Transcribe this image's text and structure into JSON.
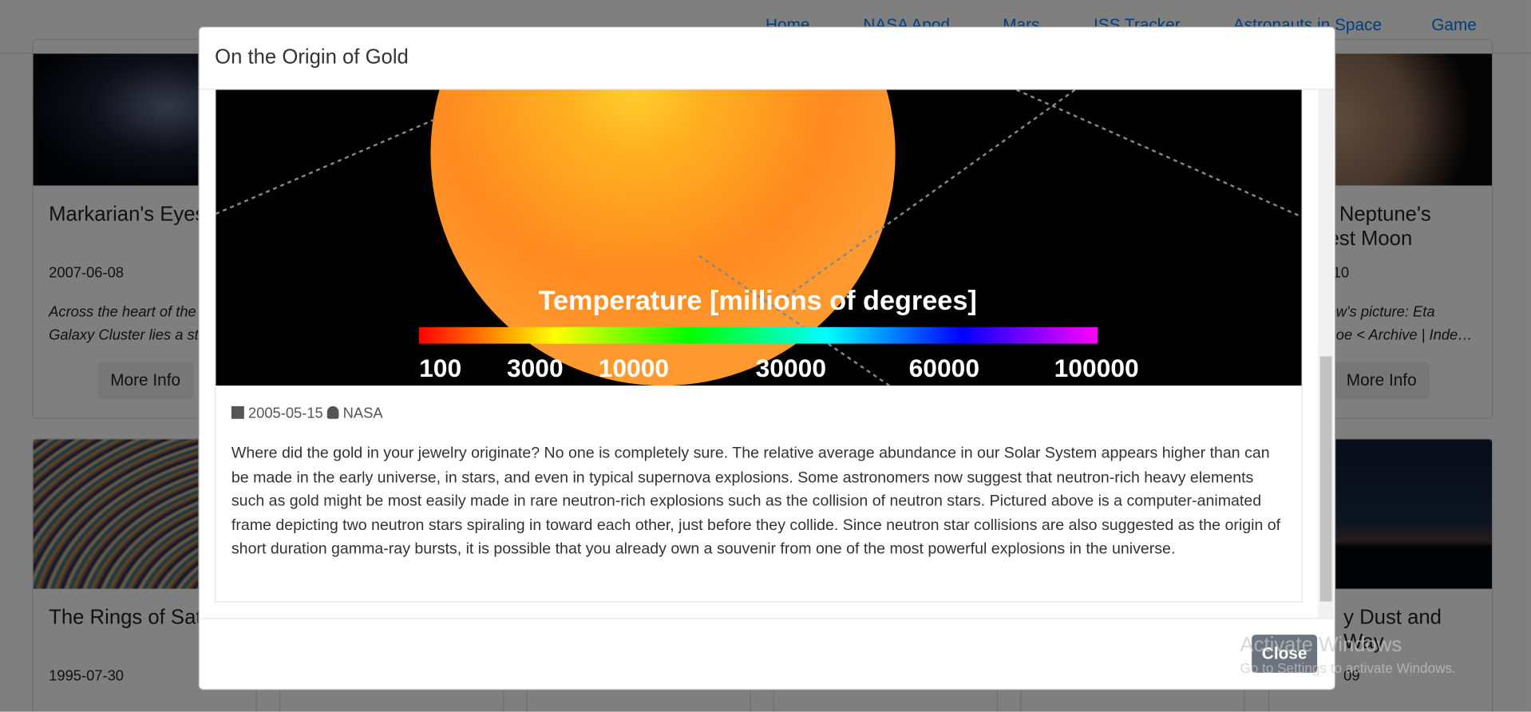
{
  "nav": {
    "links": [
      "Home",
      "NASA Apod",
      "Mars",
      "ISS Tracker",
      "Astronauts in Space",
      "Game"
    ]
  },
  "background_cards": {
    "left_top": {
      "title": "Markarian's Eyes",
      "date": "2007-06-08",
      "text": [
        "Across the heart of the V",
        "Galaxy Cluster lies a str"
      ],
      "button": "More Info"
    },
    "right_top": {
      "title": [
        ": Neptune's",
        "est Moon"
      ],
      "date": "-10",
      "text": [
        "ow's picture: Eta",
        "hoe < Archive | Inde…"
      ],
      "button": "More Info"
    },
    "left_bottom": {
      "title": "The Rings of Sat",
      "date": "1995-07-30"
    },
    "right_bottom": {
      "title": [
        "y Dust and",
        "Way"
      ],
      "date": "09"
    }
  },
  "modal": {
    "title": "On the Origin of Gold",
    "image_text": {
      "caption": "Temperature [millions of degrees]",
      "scale": [
        "100",
        "3000",
        "10000",
        "30000",
        "60000",
        "100000"
      ]
    },
    "date": "2005-05-15",
    "author": "NASA",
    "description": "Where did the gold in your jewelry originate? No one is completely sure. The relative average abundance in our Solar System appears higher than can be made in the early universe, in stars, and even in typical supernova explosions. Some astronomers now suggest that neutron-rich heavy elements such as gold might be most easily made in rare neutron-rich explosions such as the collision of neutron stars. Pictured above is a computer-animated frame depicting two neutron stars spiraling in toward each other, just before they collide. Since neutron star collisions are also suggested as the origin of short duration gamma-ray bursts, it is possible that you already own a souvenir from one of the most powerful explosions in the universe.",
    "close": "Close"
  },
  "watermark": {
    "title": "Activate Windows",
    "subtitle": "Go to Settings to activate Windows."
  }
}
